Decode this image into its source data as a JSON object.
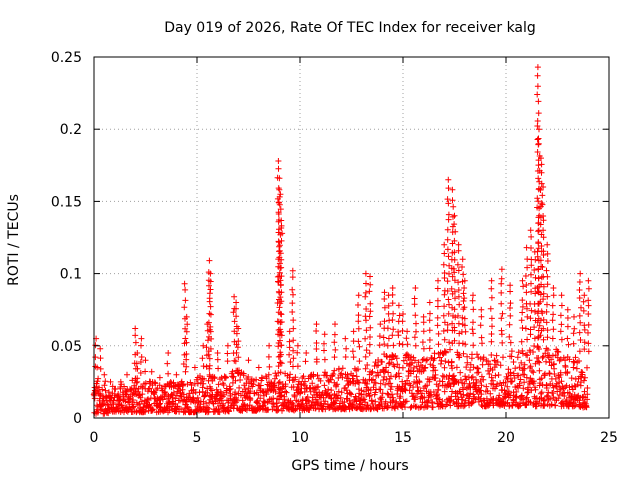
{
  "chart_data": {
    "type": "scatter",
    "title": "Day 019 of 2026, Rate Of TEC Index for receiver kalg",
    "xlabel": "GPS time / hours",
    "ylabel": "ROTI / TECUs",
    "xlim": [
      0,
      25
    ],
    "ylim": [
      0,
      0.25
    ],
    "x_ticks": [
      0,
      5,
      10,
      15,
      20,
      25
    ],
    "x_tick_labels": [
      "0",
      "5",
      "10",
      "15",
      "20",
      "25"
    ],
    "y_ticks": [
      0,
      0.05,
      0.1,
      0.15,
      0.2,
      0.25
    ],
    "y_tick_labels": [
      "0",
      "0.05",
      "0.1",
      "0.15",
      "0.2",
      "0.25"
    ],
    "grid": true,
    "marker": "+",
    "marker_color": "#ff0000",
    "series": [
      {
        "name": "ROTI",
        "x": [
          0.1,
          0.15,
          0.3,
          0.5,
          0.8,
          1.0,
          1.3,
          1.6,
          2.0,
          2.1,
          2.3,
          2.5,
          2.8,
          3.2,
          3.6,
          4.0,
          4.4,
          4.5,
          4.9,
          5.3,
          5.5,
          5.6,
          5.65,
          6.0,
          6.5,
          6.8,
          6.9,
          7.0,
          7.5,
          8.0,
          8.5,
          8.95,
          9.0,
          9.05,
          9.1,
          9.5,
          9.65,
          9.9,
          10.3,
          10.8,
          11.2,
          11.7,
          12.2,
          12.6,
          12.85,
          13.2,
          13.4,
          13.9,
          14.1,
          14.3,
          14.5,
          14.8,
          15.0,
          15.2,
          15.6,
          16.0,
          16.3,
          16.7,
          17.0,
          17.2,
          17.4,
          17.5,
          17.7,
          17.9,
          18.0,
          18.4,
          18.8,
          19.3,
          19.8,
          20.2,
          20.8,
          21.0,
          21.2,
          21.4,
          21.55,
          21.6,
          21.7,
          21.8,
          22.0,
          22.3,
          22.7,
          23.0,
          23.3,
          23.6,
          23.8,
          24.0
        ],
        "y": [
          0.055,
          0.035,
          0.048,
          0.03,
          0.025,
          0.02,
          0.025,
          0.03,
          0.062,
          0.045,
          0.055,
          0.04,
          0.032,
          0.028,
          0.045,
          0.03,
          0.093,
          0.07,
          0.035,
          0.05,
          0.065,
          0.109,
          0.1,
          0.045,
          0.05,
          0.084,
          0.08,
          0.062,
          0.04,
          0.035,
          0.05,
          0.178,
          0.166,
          0.155,
          0.133,
          0.06,
          0.102,
          0.05,
          0.045,
          0.065,
          0.058,
          0.065,
          0.055,
          0.06,
          0.085,
          0.1,
          0.098,
          0.065,
          0.087,
          0.085,
          0.09,
          0.078,
          0.072,
          0.06,
          0.09,
          0.07,
          0.08,
          0.095,
          0.12,
          0.165,
          0.158,
          0.14,
          0.12,
          0.11,
          0.095,
          0.085,
          0.075,
          0.095,
          0.103,
          0.092,
          0.095,
          0.118,
          0.13,
          0.115,
          0.243,
          0.2,
          0.18,
          0.16,
          0.12,
          0.09,
          0.085,
          0.075,
          0.07,
          0.1,
          0.085,
          0.095
        ]
      }
    ],
    "background_band": {
      "x": [
        0,
        1,
        2,
        3,
        4,
        5,
        6,
        7,
        8,
        9,
        10,
        11,
        12,
        13,
        14,
        15,
        16,
        17,
        18,
        19,
        20,
        21,
        22,
        23,
        24
      ],
      "y_low": [
        0.002,
        0.004,
        0.004,
        0.004,
        0.004,
        0.004,
        0.004,
        0.005,
        0.005,
        0.005,
        0.005,
        0.006,
        0.006,
        0.006,
        0.006,
        0.007,
        0.007,
        0.008,
        0.008,
        0.008,
        0.008,
        0.008,
        0.008,
        0.008,
        0.007
      ],
      "y_high": [
        0.03,
        0.022,
        0.028,
        0.026,
        0.025,
        0.03,
        0.03,
        0.035,
        0.028,
        0.032,
        0.03,
        0.032,
        0.035,
        0.035,
        0.045,
        0.045,
        0.042,
        0.048,
        0.046,
        0.045,
        0.045,
        0.05,
        0.05,
        0.045,
        0.04
      ]
    }
  }
}
